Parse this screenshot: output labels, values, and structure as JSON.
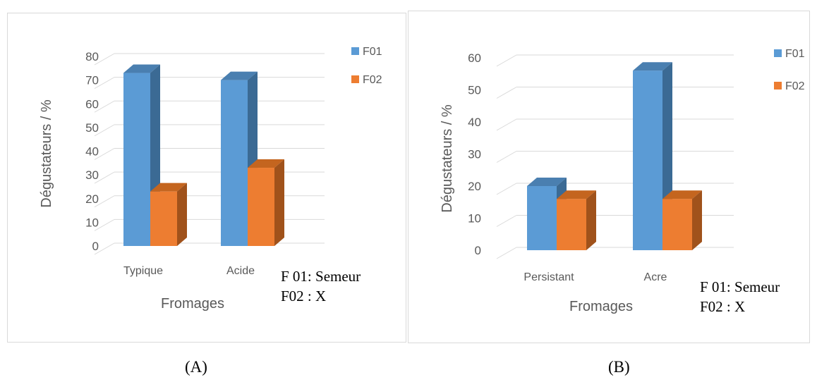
{
  "chart_data": [
    {
      "type": "bar",
      "panel": "A",
      "categories": [
        "Typique",
        "Acide"
      ],
      "series": [
        {
          "name": "F01",
          "values": [
            73,
            70
          ]
        },
        {
          "name": "F02",
          "values": [
            23,
            33
          ]
        }
      ],
      "xlabel": "Fromages",
      "ylabel": "Dégustateurs / %",
      "ylim": [
        0,
        80
      ],
      "yticks": [
        "0",
        "10",
        "20",
        "30",
        "40",
        "50",
        "60",
        "70",
        "80"
      ],
      "legend": [
        "F01",
        "F02"
      ],
      "legend_position": "right",
      "grid": true,
      "three_d": true,
      "note": [
        "F 01: Semeur",
        "F02 : X"
      ],
      "caption": "(A)"
    },
    {
      "type": "bar",
      "panel": "B",
      "categories": [
        "Persistant",
        "Acre"
      ],
      "series": [
        {
          "name": "F01",
          "values": [
            20,
            56
          ]
        },
        {
          "name": "F02",
          "values": [
            16,
            16
          ]
        }
      ],
      "xlabel": "Fromages",
      "ylabel": "Dégustateurs / %",
      "ylim": [
        0,
        60
      ],
      "yticks": [
        "0",
        "10",
        "20",
        "30",
        "40",
        "50",
        "60"
      ],
      "legend": [
        "F01",
        "F02"
      ],
      "legend_position": "right",
      "grid": true,
      "three_d": true,
      "note": [
        "F 01: Semeur",
        "F02 : X"
      ],
      "caption": "(B)"
    }
  ],
  "colors": {
    "F01": {
      "front": "#5b9bd5",
      "top": "#4a7fb0",
      "side": "#3b6a94"
    },
    "F02": {
      "front": "#ed7d31",
      "top": "#c4651f",
      "side": "#a0521b"
    },
    "grid": "#d9d9d9"
  }
}
